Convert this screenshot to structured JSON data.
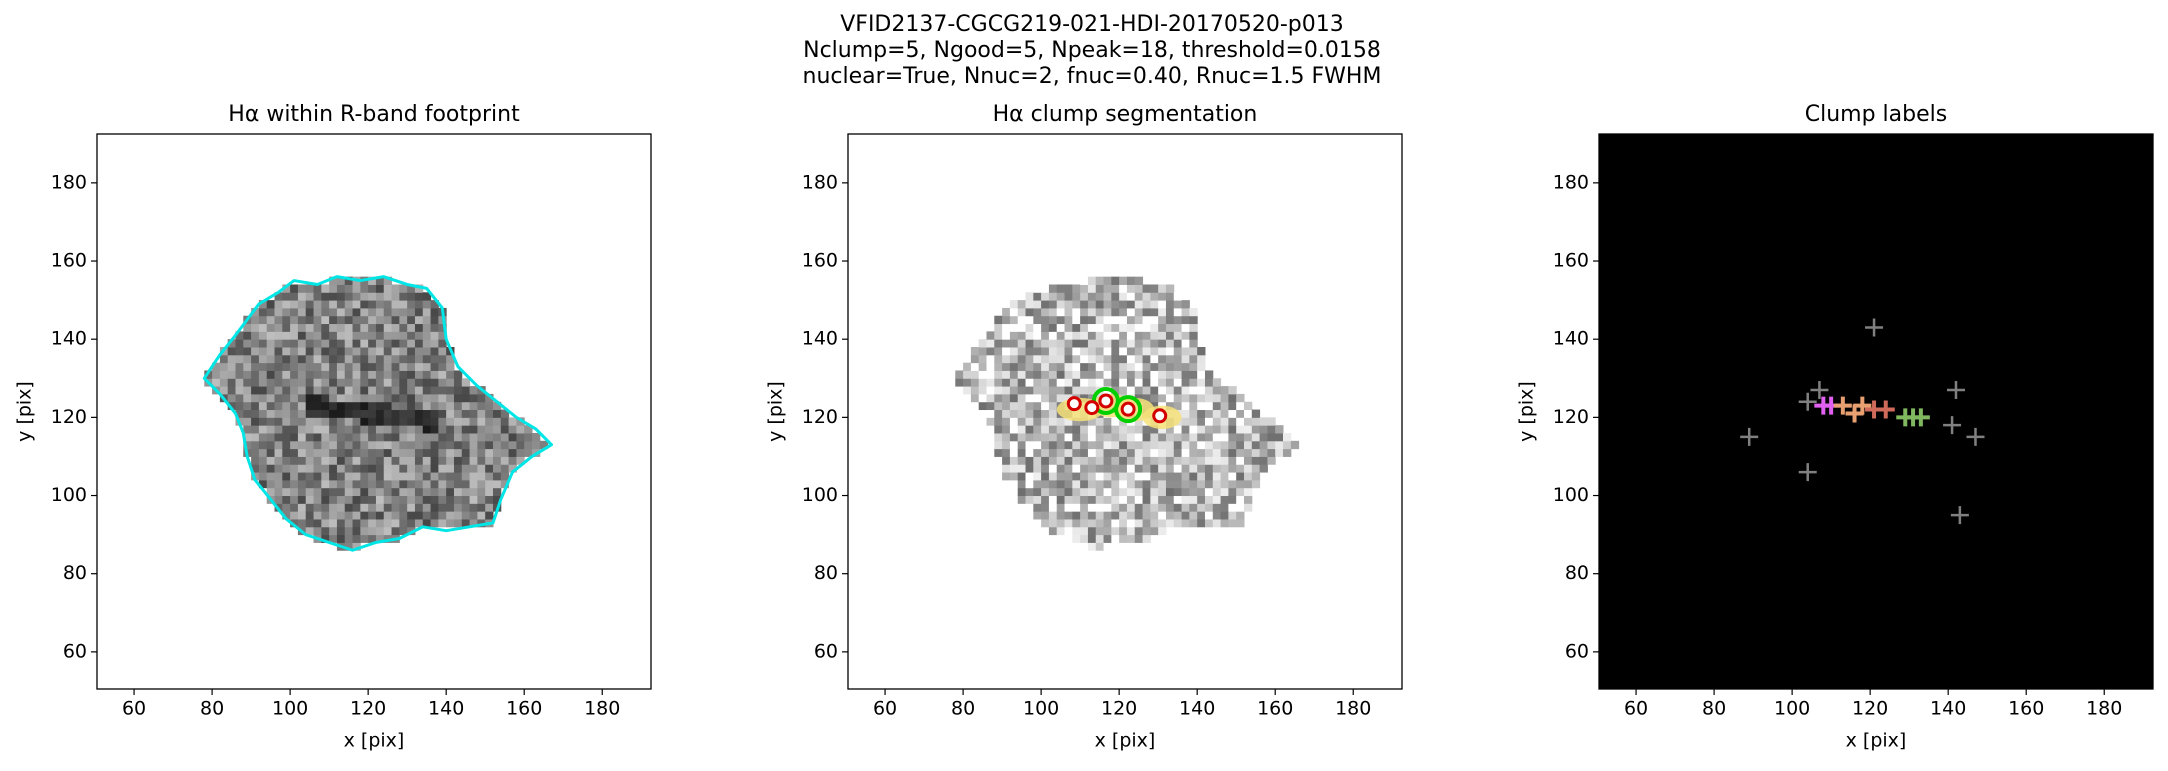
{
  "figure": {
    "title_lines": [
      "VFID2137-CGCG219-021-HDI-20170520-p013",
      "Nclump=5, Ngood=5, Npeak=18, threshold=0.0158",
      "nuclear=True, Nnuc=2, fnuc=0.40, Rnuc=1.5 FWHM"
    ]
  },
  "chart_data": [
    {
      "type": "image",
      "title": "Hα within R-band footprint",
      "xlabel": "x [pix]",
      "ylabel": "y [pix]",
      "xlim": [
        50.5,
        192.5
      ],
      "ylim": [
        50.5,
        192.5
      ],
      "xticks": [
        60,
        80,
        100,
        120,
        140,
        160,
        180
      ],
      "yticks": [
        60,
        80,
        100,
        120,
        140,
        160,
        180
      ]
    },
    {
      "type": "scatter",
      "title": "Hα clump segmentation",
      "xlabel": "x [pix]",
      "ylabel": "y [pix]",
      "xlim": [
        50.5,
        192.5
      ],
      "ylim": [
        50.5,
        192.5
      ],
      "xticks": [
        60,
        80,
        100,
        120,
        140,
        160,
        180
      ],
      "yticks": [
        60,
        80,
        100,
        120,
        140,
        160,
        180
      ],
      "series": [
        {
          "color": "#d40000",
          "x": [
            108.5,
            113,
            116.6,
            122.3,
            130.4
          ],
          "y": [
            123.5,
            122.5,
            124.2,
            122.1,
            120.4
          ]
        }
      ]
    },
    {
      "type": "scatter",
      "title": "Clump labels",
      "xlabel": "x [pix]",
      "ylabel": "y [pix]",
      "background": "#000000",
      "xlim": [
        50.5,
        192.5
      ],
      "ylim": [
        50.5,
        192.5
      ],
      "xticks": [
        60,
        80,
        100,
        120,
        140,
        160,
        180
      ],
      "yticks": [
        60,
        80,
        100,
        120,
        140,
        160,
        180
      ],
      "series": [
        {
          "color": "#808080",
          "x": [
            121,
            104,
            107,
            89,
            104,
            142,
            141,
            147,
            143
          ],
          "y": [
            143,
            124,
            127,
            115,
            106,
            127,
            118,
            115,
            95
          ]
        },
        {
          "color": "#e060f0",
          "x": [
            108,
            110
          ],
          "y": [
            123,
            123
          ]
        },
        {
          "color": "#e8a070",
          "x": [
            113,
            116,
            118
          ],
          "y": [
            123,
            121,
            123
          ]
        },
        {
          "color": "#d06a5a",
          "x": [
            121,
            124
          ],
          "y": [
            122,
            122
          ]
        },
        {
          "color": "#80b860",
          "x": [
            129,
            131,
            133
          ],
          "y": [
            120,
            120,
            120
          ]
        }
      ]
    }
  ]
}
